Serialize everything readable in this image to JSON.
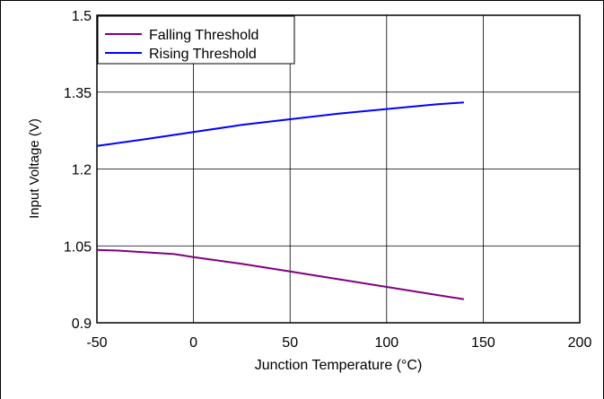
{
  "chart_data": {
    "type": "line",
    "title": "",
    "xlabel": "Junction Temperature (°C)",
    "ylabel": "Input Voltage (V)",
    "xlim": [
      -50,
      200
    ],
    "ylim": [
      0.9,
      1.5
    ],
    "xticks": [
      -50,
      0,
      50,
      100,
      150,
      200
    ],
    "xtick_labels": [
      "-50",
      "0",
      "50",
      "100",
      "150",
      "200"
    ],
    "yticks": [
      0.9,
      1.05,
      1.2,
      1.35,
      1.5
    ],
    "ytick_labels": [
      "0.9",
      "1.05",
      "1.2",
      "1.35",
      "1.5"
    ],
    "grid": true,
    "legend_position": "top-left",
    "series": [
      {
        "name": "Falling Threshold",
        "color": "#800080",
        "x": [
          -50,
          -40,
          -10,
          0,
          25,
          50,
          75,
          100,
          125,
          140
        ],
        "y": [
          1.042,
          1.041,
          1.034,
          1.028,
          1.015,
          1.0,
          0.985,
          0.97,
          0.955,
          0.946
        ]
      },
      {
        "name": "Rising Threshold",
        "color": "#0000ff",
        "x": [
          -50,
          -25,
          0,
          25,
          50,
          75,
          100,
          125,
          140
        ],
        "y": [
          1.245,
          1.258,
          1.272,
          1.286,
          1.297,
          1.308,
          1.317,
          1.326,
          1.33
        ]
      }
    ]
  }
}
